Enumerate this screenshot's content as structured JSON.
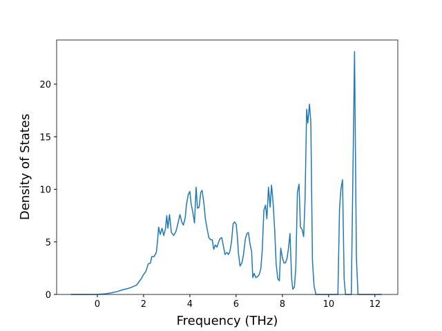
{
  "chart_data": {
    "type": "line",
    "xlabel": "Frequency (THz)",
    "ylabel": "Density of States",
    "xlim": [
      -1.76,
      12.99
    ],
    "ylim": [
      0,
      24.2
    ],
    "xticks": [
      0,
      2,
      4,
      6,
      8,
      10,
      12
    ],
    "yticks": [
      0,
      5,
      10,
      15,
      20
    ],
    "grid": false,
    "series": [
      {
        "name": "DOS",
        "color": "#1f77b4",
        "x": [
          -1.15,
          0,
          0.3,
          0.6,
          0.9,
          1.1,
          1.3,
          1.5,
          1.7,
          1.8,
          1.9,
          2.0,
          2.1,
          2.2,
          2.3,
          2.35,
          2.45,
          2.55,
          2.6,
          2.65,
          2.72,
          2.8,
          2.87,
          2.95,
          3.0,
          3.05,
          3.12,
          3.2,
          3.3,
          3.4,
          3.5,
          3.57,
          3.65,
          3.72,
          3.8,
          3.85,
          3.93,
          4.0,
          4.05,
          4.12,
          4.2,
          4.27,
          4.33,
          4.4,
          4.47,
          4.53,
          4.6,
          4.67,
          4.75,
          4.82,
          4.9,
          4.97,
          5.03,
          5.1,
          5.17,
          5.23,
          5.3,
          5.38,
          5.45,
          5.52,
          5.6,
          5.67,
          5.73,
          5.8,
          5.87,
          5.93,
          6.0,
          6.05,
          6.1,
          6.17,
          6.25,
          6.32,
          6.4,
          6.47,
          6.53,
          6.6,
          6.67,
          6.72,
          6.78,
          6.85,
          6.93,
          7.0,
          7.07,
          7.13,
          7.2,
          7.27,
          7.33,
          7.4,
          7.47,
          7.53,
          7.6,
          7.67,
          7.73,
          7.8,
          7.87,
          7.93,
          8.0,
          8.07,
          8.13,
          8.2,
          8.27,
          8.33,
          8.4,
          8.45,
          8.52,
          8.58,
          8.65,
          8.72,
          8.78,
          8.85,
          8.92,
          8.98,
          9.05,
          9.1,
          9.17,
          9.23,
          9.3,
          9.37,
          9.45,
          10.4,
          10.47,
          10.53,
          10.6,
          10.67,
          10.73,
          10.98,
          11.05,
          11.12,
          11.2,
          11.27,
          12.3
        ],
        "values": [
          0,
          0,
          0.05,
          0.15,
          0.3,
          0.45,
          0.55,
          0.7,
          0.9,
          1.2,
          1.5,
          1.9,
          2.2,
          2.9,
          3.0,
          3.6,
          3.6,
          4.0,
          5.0,
          6.4,
          5.7,
          6.3,
          5.6,
          6.3,
          7.5,
          6.3,
          7.6,
          5.9,
          5.6,
          6.0,
          6.9,
          7.6,
          6.9,
          6.6,
          7.3,
          8.5,
          9.5,
          9.8,
          8.7,
          7.9,
          6.8,
          10.2,
          8.2,
          8.3,
          9.7,
          9.9,
          8.8,
          7.2,
          6.2,
          5.4,
          5.2,
          5.2,
          4.3,
          4.7,
          4.5,
          4.9,
          5.3,
          5.4,
          4.6,
          3.8,
          4.0,
          3.8,
          4.1,
          5.0,
          6.7,
          6.9,
          6.7,
          5.6,
          3.9,
          2.7,
          3.0,
          3.8,
          5.3,
          5.8,
          5.9,
          4.8,
          4.1,
          1.6,
          2.0,
          1.6,
          1.7,
          1.9,
          2.5,
          4.2,
          8.0,
          8.5,
          7.2,
          10.2,
          8.3,
          10.4,
          8.7,
          6.0,
          2.9,
          1.5,
          1.3,
          4.4,
          3.5,
          3.0,
          3.0,
          3.4,
          4.5,
          5.8,
          1.5,
          0.5,
          0.7,
          2.5,
          9.7,
          10.5,
          6.4,
          6.2,
          5.5,
          9.0,
          17.6,
          16.3,
          18.1,
          16.4,
          3.2,
          0.8,
          0,
          0,
          8.1,
          10.0,
          10.9,
          1.5,
          0,
          0,
          11.5,
          23.1,
          3.5,
          0,
          0
        ]
      }
    ]
  }
}
